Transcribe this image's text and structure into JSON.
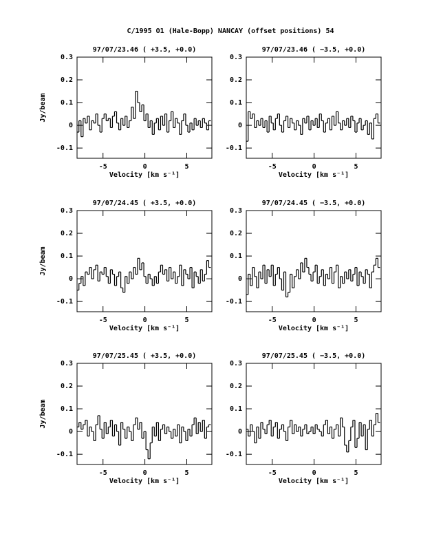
{
  "title": "C/1995 O1 (Hale-Bopp)   NANCAY     (offset positions)   54",
  "chart_data": [
    {
      "type": "line",
      "drawstyle": "steps-mid",
      "color": "#000000",
      "title": "97/07/23.46  ( +3.5, +0.0)",
      "xlabel": "Velocity [km s⁻¹]",
      "ylabel": "Jy/beam",
      "xlim": [
        -8.1,
        8.0
      ],
      "ylim": [
        -0.145,
        0.3
      ],
      "xticks": [
        -5,
        0,
        5
      ],
      "yticks": [
        -0.1,
        0,
        0.1,
        0.2,
        0.3
      ],
      "x": [
        -8,
        -7.75,
        -7.5,
        -7.25,
        -7,
        -6.75,
        -6.5,
        -6.25,
        -6,
        -5.75,
        -5.5,
        -5.25,
        -5,
        -4.75,
        -4.5,
        -4.25,
        -4,
        -3.75,
        -3.5,
        -3.25,
        -3,
        -2.75,
        -2.5,
        -2.25,
        -2,
        -1.75,
        -1.5,
        -1.25,
        -1,
        -0.75,
        -0.5,
        -0.25,
        0,
        0.25,
        0.5,
        0.75,
        1,
        1.25,
        1.5,
        1.75,
        2,
        2.25,
        2.5,
        2.75,
        3,
        3.25,
        3.5,
        3.75,
        4,
        4.25,
        4.5,
        4.75,
        5,
        5.25,
        5.5,
        5.75,
        6,
        6.25,
        6.5,
        6.75,
        7,
        7.25,
        7.5,
        7.75
      ],
      "values": [
        -0.03,
        0.02,
        -0.05,
        0.03,
        0.01,
        0.04,
        -0.02,
        0.02,
        0.01,
        0.05,
        0.0,
        -0.03,
        0.03,
        0.05,
        0.02,
        0.03,
        -0.01,
        0.04,
        0.06,
        0.01,
        -0.02,
        0.03,
        0.0,
        0.04,
        -0.01,
        0.02,
        0.08,
        0.03,
        0.15,
        0.1,
        0.06,
        0.09,
        0.02,
        0.05,
        -0.01,
        0.02,
        -0.04,
        0.01,
        0.03,
        -0.02,
        0.04,
        0.0,
        0.05,
        -0.03,
        0.02,
        0.06,
        -0.01,
        0.03,
        0.01,
        -0.04,
        0.02,
        0.05,
        0.0,
        -0.03,
        0.01,
        -0.02,
        0.03,
        0.0,
        0.02,
        -0.01,
        0.03,
        0.01,
        -0.02,
        0.02
      ]
    },
    {
      "type": "line",
      "drawstyle": "steps-mid",
      "color": "#000000",
      "title": "97/07/23.46  ( −3.5, +0.0)",
      "xlabel": "Velocity [km s⁻¹]",
      "xlim": [
        -8.1,
        8.0
      ],
      "ylim": [
        -0.145,
        0.3
      ],
      "xticks": [
        -5,
        0,
        5
      ],
      "yticks": [
        -0.1,
        0,
        0.1,
        0.2,
        0.3
      ],
      "x": [
        -8,
        -7.75,
        -7.5,
        -7.25,
        -7,
        -6.75,
        -6.5,
        -6.25,
        -6,
        -5.75,
        -5.5,
        -5.25,
        -5,
        -4.75,
        -4.5,
        -4.25,
        -4,
        -3.75,
        -3.5,
        -3.25,
        -3,
        -2.75,
        -2.5,
        -2.25,
        -2,
        -1.75,
        -1.5,
        -1.25,
        -1,
        -0.75,
        -0.5,
        -0.25,
        0,
        0.25,
        0.5,
        0.75,
        1,
        1.25,
        1.5,
        1.75,
        2,
        2.25,
        2.5,
        2.75,
        3,
        3.25,
        3.5,
        3.75,
        4,
        4.25,
        4.5,
        4.75,
        5,
        5.25,
        5.5,
        5.75,
        6,
        6.25,
        6.5,
        6.75,
        7,
        7.25,
        7.5,
        7.75
      ],
      "values": [
        -0.07,
        0.06,
        0.03,
        0.05,
        -0.01,
        0.02,
        0.0,
        0.03,
        -0.01,
        0.02,
        -0.03,
        0.04,
        0.01,
        -0.02,
        0.03,
        0.05,
        0.0,
        -0.03,
        0.02,
        0.04,
        -0.01,
        0.03,
        0.01,
        -0.02,
        0.02,
        0.0,
        -0.04,
        0.03,
        0.01,
        0.04,
        -0.02,
        0.02,
        0.0,
        0.03,
        -0.01,
        0.05,
        0.02,
        -0.03,
        0.01,
        0.03,
        -0.02,
        0.04,
        0.0,
        0.06,
        0.01,
        -0.02,
        0.02,
        0.0,
        0.03,
        -0.01,
        0.04,
        0.02,
        -0.03,
        0.01,
        0.03,
        -0.02,
        0.0,
        0.02,
        -0.04,
        0.01,
        -0.06,
        0.03,
        0.05,
        0.01
      ]
    },
    {
      "type": "line",
      "drawstyle": "steps-mid",
      "color": "#000000",
      "title": "97/07/24.45  ( +3.5, +0.0)",
      "xlabel": "Velocity [km s⁻¹]",
      "ylabel": "Jy/beam",
      "xlim": [
        -8.1,
        8.0
      ],
      "ylim": [
        -0.145,
        0.3
      ],
      "xticks": [
        -5,
        0,
        5
      ],
      "yticks": [
        -0.1,
        0,
        0.1,
        0.2,
        0.3
      ],
      "x": [
        -8,
        -7.75,
        -7.5,
        -7.25,
        -7,
        -6.75,
        -6.5,
        -6.25,
        -6,
        -5.75,
        -5.5,
        -5.25,
        -5,
        -4.75,
        -4.5,
        -4.25,
        -4,
        -3.75,
        -3.5,
        -3.25,
        -3,
        -2.75,
        -2.5,
        -2.25,
        -2,
        -1.75,
        -1.5,
        -1.25,
        -1,
        -0.75,
        -0.5,
        -0.25,
        0,
        0.25,
        0.5,
        0.75,
        1,
        1.25,
        1.5,
        1.75,
        2,
        2.25,
        2.5,
        2.75,
        3,
        3.25,
        3.5,
        3.75,
        4,
        4.25,
        4.5,
        4.75,
        5,
        5.25,
        5.5,
        5.75,
        6,
        6.25,
        6.5,
        6.75,
        7,
        7.25,
        7.5,
        7.75
      ],
      "values": [
        -0.05,
        -0.02,
        0.01,
        -0.03,
        0.03,
        0.02,
        0.05,
        0.0,
        0.04,
        0.06,
        -0.01,
        0.03,
        0.02,
        0.05,
        0.01,
        -0.02,
        0.04,
        0.02,
        -0.03,
        0.01,
        0.03,
        -0.04,
        -0.06,
        0.01,
        -0.02,
        0.03,
        0.0,
        0.05,
        0.02,
        0.09,
        0.04,
        0.07,
        0.01,
        -0.02,
        0.02,
        0.0,
        -0.03,
        0.01,
        -0.02,
        0.03,
        0.06,
        0.02,
        0.04,
        -0.01,
        0.05,
        0.0,
        0.03,
        -0.02,
        0.01,
        0.06,
        -0.03,
        0.04,
        0.02,
        0.0,
        0.05,
        -0.04,
        0.03,
        0.01,
        -0.02,
        0.04,
        -0.01,
        0.02,
        0.08,
        0.05
      ]
    },
    {
      "type": "line",
      "drawstyle": "steps-mid",
      "color": "#000000",
      "title": "97/07/24.45  ( −3.5, +0.0)",
      "xlabel": "Velocity [km s⁻¹]",
      "xlim": [
        -8.1,
        8.0
      ],
      "ylim": [
        -0.145,
        0.3
      ],
      "xticks": [
        -5,
        0,
        5
      ],
      "yticks": [
        -0.1,
        0,
        0.1,
        0.2,
        0.3
      ],
      "x": [
        -8,
        -7.75,
        -7.5,
        -7.25,
        -7,
        -6.75,
        -6.5,
        -6.25,
        -6,
        -5.75,
        -5.5,
        -5.25,
        -5,
        -4.75,
        -4.5,
        -4.25,
        -4,
        -3.75,
        -3.5,
        -3.25,
        -3,
        -2.75,
        -2.5,
        -2.25,
        -2,
        -1.75,
        -1.5,
        -1.25,
        -1,
        -0.75,
        -0.5,
        -0.25,
        0,
        0.25,
        0.5,
        0.75,
        1,
        1.25,
        1.5,
        1.75,
        2,
        2.25,
        2.5,
        2.75,
        3,
        3.25,
        3.5,
        3.75,
        4,
        4.25,
        4.5,
        4.75,
        5,
        5.25,
        5.5,
        5.75,
        6,
        6.25,
        6.5,
        6.75,
        7,
        7.25,
        7.5,
        7.75
      ],
      "values": [
        -0.07,
        0.02,
        -0.03,
        0.05,
        0.01,
        -0.04,
        0.03,
        0.0,
        0.06,
        -0.02,
        0.04,
        0.01,
        0.06,
        -0.03,
        0.02,
        0.05,
        0.0,
        -0.05,
        0.03,
        -0.08,
        -0.06,
        0.02,
        -0.04,
        0.01,
        0.04,
        0.0,
        0.07,
        0.03,
        0.09,
        0.05,
        0.02,
        -0.01,
        0.03,
        0.06,
        -0.02,
        0.01,
        0.04,
        -0.03,
        0.02,
        0.0,
        0.05,
        -0.02,
        0.03,
        0.06,
        -0.04,
        0.01,
        -0.02,
        0.03,
        0.0,
        0.04,
        -0.01,
        0.02,
        0.05,
        -0.03,
        0.03,
        0.01,
        -0.02,
        0.04,
        0.02,
        -0.04,
        0.03,
        0.06,
        0.09,
        0.05
      ]
    },
    {
      "type": "line",
      "drawstyle": "steps-mid",
      "color": "#000000",
      "title": "97/07/25.45  ( +3.5, +0.0)",
      "xlabel": "Velocity [km s⁻¹]",
      "ylabel": "Jy/beam",
      "xlim": [
        -8.1,
        8.0
      ],
      "ylim": [
        -0.145,
        0.3
      ],
      "xticks": [
        -5,
        0,
        5
      ],
      "yticks": [
        -0.1,
        0,
        0.1,
        0.2,
        0.3
      ],
      "x": [
        -8,
        -7.75,
        -7.5,
        -7.25,
        -7,
        -6.75,
        -6.5,
        -6.25,
        -6,
        -5.75,
        -5.5,
        -5.25,
        -5,
        -4.75,
        -4.5,
        -4.25,
        -4,
        -3.75,
        -3.5,
        -3.25,
        -3,
        -2.75,
        -2.5,
        -2.25,
        -2,
        -1.75,
        -1.5,
        -1.25,
        -1,
        -0.75,
        -0.5,
        -0.25,
        0,
        0.25,
        0.5,
        0.75,
        1,
        1.25,
        1.5,
        1.75,
        2,
        2.25,
        2.5,
        2.75,
        3,
        3.25,
        3.5,
        3.75,
        4,
        4.25,
        4.5,
        4.75,
        5,
        5.25,
        5.5,
        5.75,
        6,
        6.25,
        6.5,
        6.75,
        7,
        7.25,
        7.5,
        7.75
      ],
      "values": [
        0.02,
        0.04,
        0.01,
        0.03,
        0.05,
        -0.02,
        0.02,
        0.0,
        -0.04,
        0.03,
        0.07,
        0.01,
        -0.03,
        0.04,
        -0.01,
        0.02,
        0.05,
        -0.02,
        0.03,
        0.0,
        -0.06,
        0.04,
        0.01,
        -0.03,
        0.02,
        0.0,
        -0.04,
        0.03,
        0.06,
        0.01,
        0.04,
        -0.03,
        0.0,
        -0.08,
        -0.12,
        -0.05,
        0.02,
        -0.02,
        0.04,
        -0.04,
        0.01,
        0.03,
        -0.01,
        0.02,
        0.0,
        -0.03,
        0.01,
        -0.02,
        0.03,
        -0.05,
        0.02,
        0.0,
        -0.04,
        0.01,
        -0.02,
        0.03,
        0.06,
        -0.01,
        0.04,
        0.0,
        0.05,
        -0.03,
        0.02,
        0.03
      ]
    },
    {
      "type": "line",
      "drawstyle": "steps-mid",
      "color": "#000000",
      "title": "97/07/25.45  ( −3.5, +0.0)",
      "xlabel": "Velocity [km s⁻¹]",
      "xlim": [
        -8.1,
        8.0
      ],
      "ylim": [
        -0.145,
        0.3
      ],
      "xticks": [
        -5,
        0,
        5
      ],
      "yticks": [
        -0.1,
        0,
        0.1,
        0.2,
        0.3
      ],
      "x": [
        -8,
        -7.75,
        -7.5,
        -7.25,
        -7,
        -6.75,
        -6.5,
        -6.25,
        -6,
        -5.75,
        -5.5,
        -5.25,
        -5,
        -4.75,
        -4.5,
        -4.25,
        -4,
        -3.75,
        -3.5,
        -3.25,
        -3,
        -2.75,
        -2.5,
        -2.25,
        -2,
        -1.75,
        -1.5,
        -1.25,
        -1,
        -0.75,
        -0.5,
        -0.25,
        0,
        0.25,
        0.5,
        0.75,
        1,
        1.25,
        1.5,
        1.75,
        2,
        2.25,
        2.5,
        2.75,
        3,
        3.25,
        3.5,
        3.75,
        4,
        4.25,
        4.5,
        4.75,
        5,
        5.25,
        5.5,
        5.75,
        6,
        6.25,
        6.5,
        6.75,
        7,
        7.25,
        7.5,
        7.75
      ],
      "values": [
        0.01,
        -0.02,
        0.03,
        0.0,
        -0.05,
        0.02,
        -0.03,
        0.04,
        0.01,
        -0.01,
        0.03,
        0.05,
        -0.02,
        0.02,
        0.04,
        -0.03,
        0.01,
        0.03,
        0.0,
        -0.04,
        0.02,
        0.05,
        -0.01,
        0.03,
        0.0,
        0.02,
        -0.02,
        0.01,
        0.03,
        -0.01,
        0.0,
        0.02,
        -0.01,
        0.03,
        0.01,
        0.0,
        -0.02,
        0.03,
        0.05,
        -0.01,
        0.02,
        -0.03,
        0.01,
        0.03,
        -0.02,
        0.06,
        0.02,
        -0.06,
        -0.09,
        -0.04,
        0.02,
        0.05,
        -0.07,
        -0.03,
        0.04,
        -0.02,
        0.03,
        -0.08,
        0.01,
        0.05,
        -0.02,
        0.03,
        0.08,
        0.04
      ]
    }
  ]
}
